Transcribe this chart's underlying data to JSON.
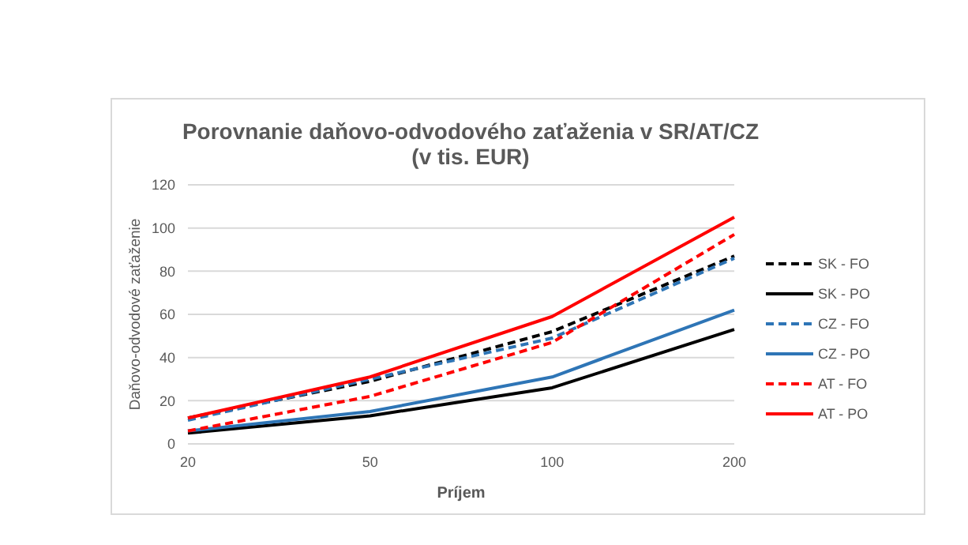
{
  "chart_data": {
    "type": "line",
    "title": "Porovnanie daňovo-odvodového zaťaženia v SR/AT/CZ\n(v tis. EUR)",
    "xlabel": "Príjem",
    "ylabel": "Daňovo-odvodové zaťaženie",
    "categories": [
      "20",
      "50",
      "100",
      "200"
    ],
    "ylim": [
      0,
      120
    ],
    "yticks": [
      0,
      20,
      40,
      60,
      80,
      100,
      120
    ],
    "grid": "y",
    "legend": "right",
    "marker": "none",
    "series": [
      {
        "name": "SK - FO",
        "color": "#000000",
        "line_style": "dashed",
        "values": [
          12,
          29,
          52,
          87
        ]
      },
      {
        "name": "SK - PO",
        "color": "#000000",
        "line_style": "solid",
        "values": [
          5,
          13,
          26,
          53
        ]
      },
      {
        "name": "CZ - FO",
        "color": "#2e75b6",
        "line_style": "dashed",
        "values": [
          11,
          30,
          49,
          86
        ]
      },
      {
        "name": "CZ - PO",
        "color": "#2e75b6",
        "line_style": "solid",
        "values": [
          6,
          15,
          31,
          62
        ]
      },
      {
        "name": "AT - FO",
        "color": "#ff0000",
        "line_style": "dashed",
        "values": [
          6,
          22,
          47,
          97
        ]
      },
      {
        "name": "AT - PO",
        "color": "#ff0000",
        "line_style": "solid",
        "values": [
          12,
          31,
          59,
          105
        ]
      }
    ]
  }
}
